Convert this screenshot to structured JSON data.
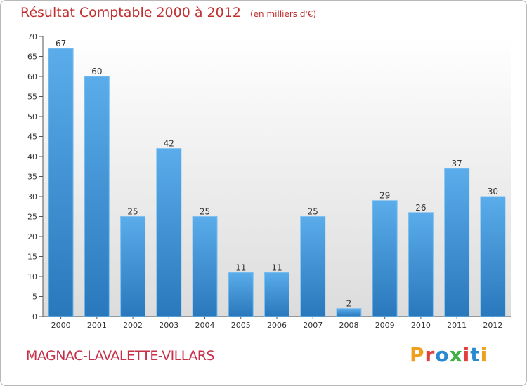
{
  "header": {
    "title": "Résultat Comptable 2000 à 2012",
    "subtitle": "(en milliers d'€)"
  },
  "footer": {
    "commune": "MAGNAC-LAVALETTE-VILLARS",
    "logo_text": "Proxiti"
  },
  "colors": {
    "bar_top": "#5aacea",
    "bar_bottom": "#2a78bc",
    "title": "#c03030",
    "logo": [
      "#f0a020",
      "#e04040",
      "#2a8ad0",
      "#40b040",
      "#e04040",
      "#2a8ad0",
      "#f0a020"
    ]
  },
  "chart_data": {
    "type": "bar",
    "title": "Résultat Comptable 2000 à 2012",
    "subtitle": "(en milliers d'€)",
    "categories": [
      "2000",
      "2001",
      "2002",
      "2003",
      "2004",
      "2005",
      "2006",
      "2007",
      "2008",
      "2009",
      "2010",
      "2011",
      "2012"
    ],
    "values": [
      67,
      60,
      25,
      42,
      25,
      11,
      11,
      25,
      2,
      29,
      26,
      37,
      30
    ],
    "ylim": [
      0,
      70
    ],
    "yticks": [
      0,
      5,
      10,
      15,
      20,
      25,
      30,
      35,
      40,
      45,
      50,
      55,
      60,
      65,
      70
    ],
    "grid": false,
    "legend": "none"
  }
}
